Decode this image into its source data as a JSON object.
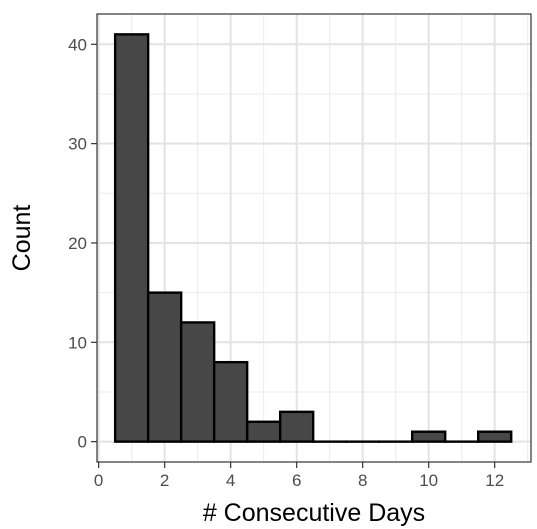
{
  "chart_data": {
    "type": "bar",
    "subtype": "histogram",
    "xlabel": "# Consecutive Days",
    "ylabel": "Count",
    "x_ticks": [
      0,
      2,
      4,
      6,
      8,
      10,
      12
    ],
    "y_ticks": [
      0,
      10,
      20,
      30,
      40
    ],
    "xlim": [
      -0.05,
      13.1
    ],
    "ylim": [
      -2.05,
      43.05
    ],
    "bin_width": 1,
    "bins": [
      {
        "x": 1,
        "count": 41
      },
      {
        "x": 2,
        "count": 15
      },
      {
        "x": 3,
        "count": 12
      },
      {
        "x": 4,
        "count": 8
      },
      {
        "x": 5,
        "count": 2
      },
      {
        "x": 6,
        "count": 3
      },
      {
        "x": 7,
        "count": 0
      },
      {
        "x": 8,
        "count": 0
      },
      {
        "x": 9,
        "count": 0
      },
      {
        "x": 10,
        "count": 1
      },
      {
        "x": 11,
        "count": 0
      },
      {
        "x": 12,
        "count": 1
      }
    ],
    "grid": true,
    "theme": "bw",
    "bar_fill": "#474747",
    "bar_stroke": "#000000"
  }
}
